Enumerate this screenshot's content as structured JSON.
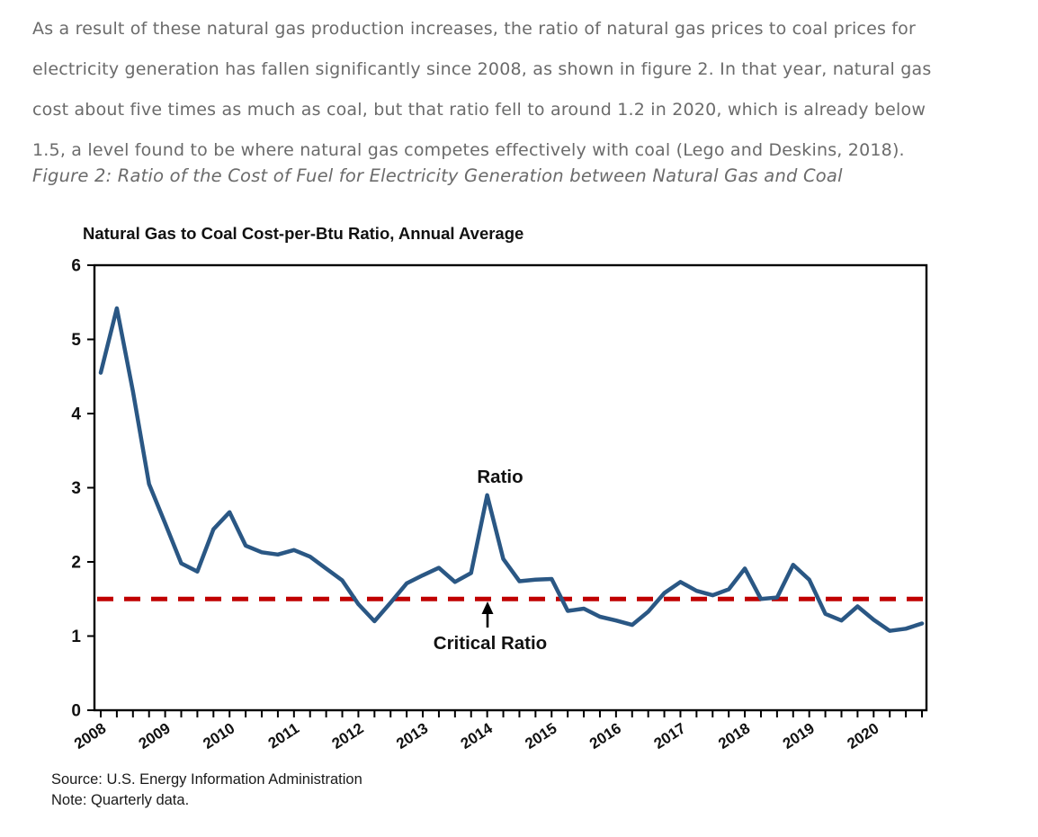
{
  "document": {
    "paragraph_lines": [
      "As a result of these natural gas production increases, the ratio of natural gas prices to coal prices for",
      "electricity generation has fallen significantly since 2008, as shown in figure 2. In that year, natural gas",
      "cost about five times as much as coal, but that ratio fell to around 1.2 in 2020, which is already below",
      "1.5, a level found to be where natural gas competes effectively with coal (Lego and Deskins, 2018)."
    ],
    "figure_caption": "Figure 2: Ratio of the Cost of Fuel for Electricity Generation between Natural Gas and Coal"
  },
  "chart": {
    "title": "Natural Gas to Coal Cost-per-Btu Ratio, Annual Average",
    "ratio_label": "Ratio",
    "critical_ratio_label": "Critical Ratio",
    "source": "Source: U.S. Energy Information Administration",
    "note": "Note: Quarterly data.",
    "colors": {
      "ratio_line": "#2A5784",
      "critical_ratio_line": "#C00000",
      "axis": "#000000",
      "body_text": "#6B6B6B",
      "chart_text": "#111111"
    }
  },
  "chart_data": {
    "type": "line",
    "title": "Natural Gas to Coal Cost-per-Btu Ratio, Annual Average",
    "frequency": "quarterly",
    "years": [
      2008,
      2009,
      2010,
      2011,
      2012,
      2013,
      2014,
      2015,
      2016,
      2017,
      2018,
      2019,
      2020
    ],
    "values": [
      4.55,
      5.42,
      4.3,
      3.05,
      2.52,
      1.98,
      1.87,
      2.44,
      2.67,
      2.22,
      2.13,
      2.1,
      2.16,
      2.07,
      1.91,
      1.75,
      1.43,
      1.2,
      1.45,
      1.71,
      1.82,
      1.92,
      1.73,
      1.85,
      2.9,
      2.04,
      1.74,
      1.76,
      1.77,
      1.34,
      1.37,
      1.26,
      1.21,
      1.15,
      1.33,
      1.58,
      1.73,
      1.61,
      1.55,
      1.63,
      1.91,
      1.5,
      1.52,
      1.96,
      1.76,
      1.3,
      1.21,
      1.4,
      1.22,
      1.07,
      1.1,
      1.17
    ],
    "series": [
      {
        "name": "Ratio",
        "color": "#2A5784"
      }
    ],
    "critical_ratio": 1.5,
    "critical_ratio_style": "dashed",
    "critical_ratio_color": "#C00000",
    "ylim": [
      0,
      6
    ],
    "yticks": [
      0,
      1,
      2,
      3,
      4,
      5,
      6
    ],
    "xlabel": "",
    "ylabel": "",
    "grid": false,
    "legend": "none",
    "annotations": [
      {
        "text": "Ratio",
        "points_to": "2014 peak"
      },
      {
        "text": "Critical Ratio",
        "points_to": "dashed line at 1.5"
      }
    ]
  }
}
